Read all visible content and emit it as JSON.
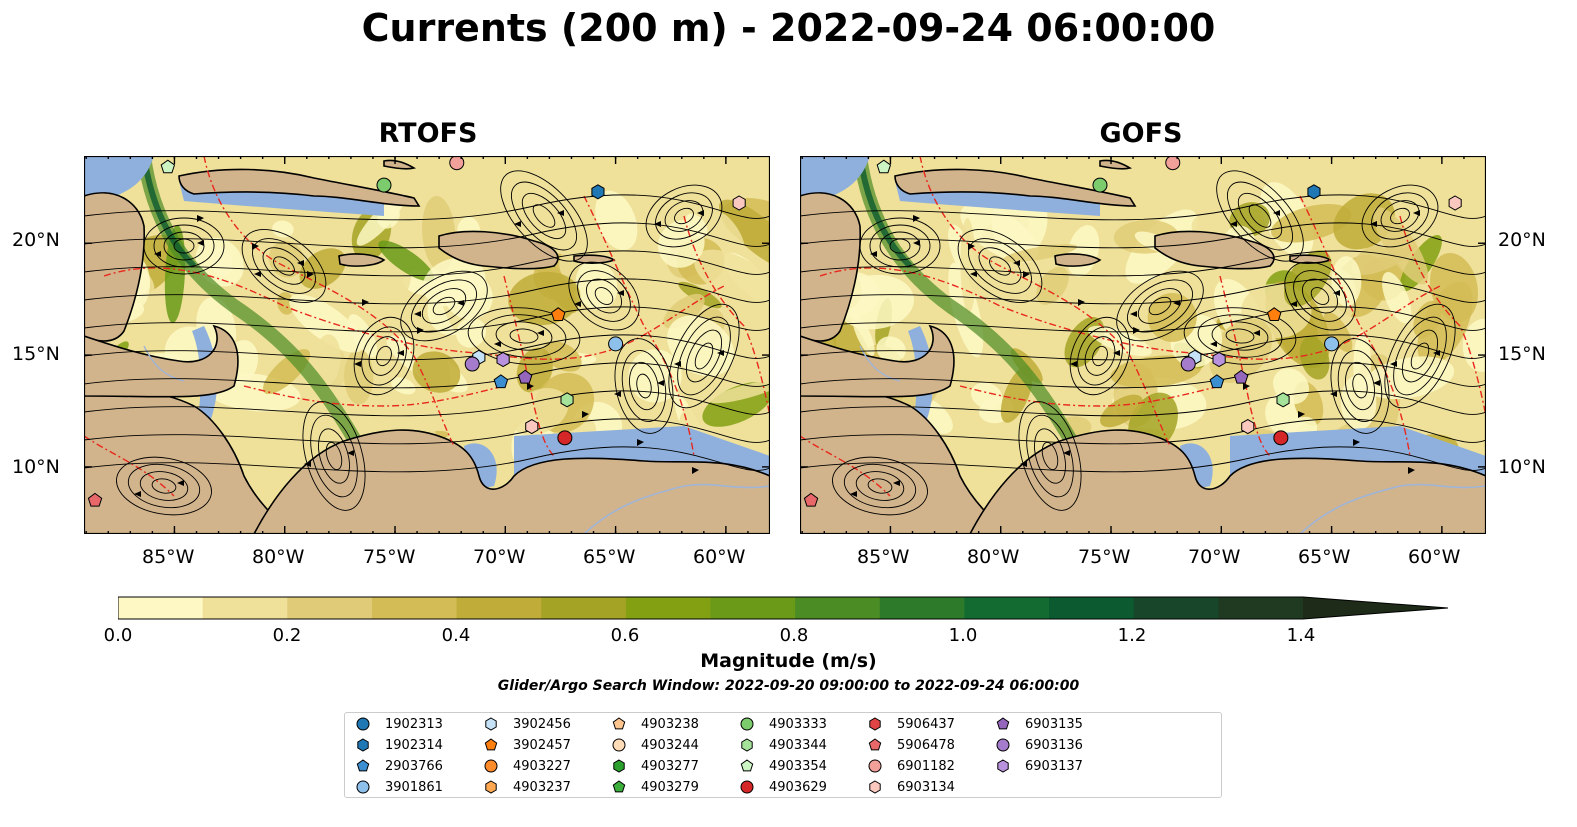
{
  "title": "Currents (200 m) - 2022-09-24 06:00:00",
  "panels": [
    {
      "title": "RTOFS"
    },
    {
      "title": "GOFS"
    }
  ],
  "lon_ticks": [
    "85°W",
    "80°W",
    "75°W",
    "70°W",
    "65°W",
    "60°W"
  ],
  "lat_ticks": [
    "20°N",
    "15°N",
    "10°N"
  ],
  "colorbar": {
    "label": "Magnitude (m/s)",
    "ticks": [
      "0.0",
      "0.2",
      "0.4",
      "0.6",
      "0.8",
      "1.0",
      "1.2",
      "1.4"
    ],
    "colors": [
      "#fdf8c4",
      "#efe09a",
      "#e0cc78",
      "#d3bc55",
      "#c0ac38",
      "#a4a326",
      "#82a012",
      "#6a9a18",
      "#4b8c24",
      "#2c7a2a",
      "#136b32",
      "#0c5a30",
      "#18462a",
      "#203a22",
      "#1d2b18"
    ]
  },
  "search_window": "Glider/Argo Search Window: 2022-09-20 09:00:00 to 2022-09-24 06:00:00",
  "legend": [
    {
      "id": "1902313",
      "shape": "circle",
      "color": "#1f77b4"
    },
    {
      "id": "1902314",
      "shape": "hexagon",
      "color": "#1f77b4"
    },
    {
      "id": "2903766",
      "shape": "pentagon",
      "color": "#3b8fd0"
    },
    {
      "id": "3901861",
      "shape": "circle",
      "color": "#8ec0ec"
    },
    {
      "id": "3902456",
      "shape": "hexagon",
      "color": "#c6e2f7"
    },
    {
      "id": "3902457",
      "shape": "pentagon",
      "color": "#ff7f0e"
    },
    {
      "id": "4903227",
      "shape": "circle",
      "color": "#ff8c2a"
    },
    {
      "id": "4903237",
      "shape": "hexagon",
      "color": "#ffa851"
    },
    {
      "id": "4903238",
      "shape": "pentagon",
      "color": "#ffc58f"
    },
    {
      "id": "4903244",
      "shape": "circle",
      "color": "#ffdcb8"
    },
    {
      "id": "4903277",
      "shape": "hexagon",
      "color": "#2ca02c"
    },
    {
      "id": "4903279",
      "shape": "pentagon",
      "color": "#3cae3c"
    },
    {
      "id": "4903333",
      "shape": "circle",
      "color": "#7ccb6c"
    },
    {
      "id": "4903344",
      "shape": "hexagon",
      "color": "#a6e39a"
    },
    {
      "id": "4903354",
      "shape": "pentagon",
      "color": "#cdf5c4"
    },
    {
      "id": "4903629",
      "shape": "circle",
      "color": "#d62728"
    },
    {
      "id": "5906437",
      "shape": "hexagon",
      "color": "#e04444"
    },
    {
      "id": "5906478",
      "shape": "pentagon",
      "color": "#e8686a"
    },
    {
      "id": "6901182",
      "shape": "circle",
      "color": "#f2a09a"
    },
    {
      "id": "6903134",
      "shape": "hexagon",
      "color": "#fbc8c0"
    },
    {
      "id": "6903135",
      "shape": "pentagon",
      "color": "#9467bd"
    },
    {
      "id": "6903136",
      "shape": "circle",
      "color": "#a57ccc"
    },
    {
      "id": "6903137",
      "shape": "hexagon",
      "color": "#b892dc"
    }
  ],
  "map_colors": {
    "land": "#d2b48c",
    "shallow": "#8fb0dc",
    "eez": "#e8281e",
    "river": "#a0b4d6"
  },
  "floats_on_map": [
    {
      "id": "4903354",
      "lon": -85.3,
      "lat": 23.4
    },
    {
      "id": "4903333",
      "lon": -75.5,
      "lat": 22.6
    },
    {
      "id": "6901182",
      "lon": -72.2,
      "lat": 23.6
    },
    {
      "id": "1902314",
      "lon": -65.8,
      "lat": 22.3
    },
    {
      "id": "6903134",
      "lon": -59.4,
      "lat": 21.8
    },
    {
      "id": "3902457",
      "lon": -67.6,
      "lat": 16.8
    },
    {
      "id": "3901861",
      "lon": -65.0,
      "lat": 15.5
    },
    {
      "id": "3902456",
      "lon": -71.2,
      "lat": 14.9
    },
    {
      "id": "6903137",
      "lon": -70.1,
      "lat": 14.8
    },
    {
      "id": "6903136",
      "lon": -71.5,
      "lat": 14.6
    },
    {
      "id": "2903766",
      "lon": -70.2,
      "lat": 13.8
    },
    {
      "id": "6903135",
      "lon": -69.1,
      "lat": 14.0
    },
    {
      "id": "4903344",
      "lon": -67.2,
      "lat": 13.0
    },
    {
      "id": "6903134",
      "lon": -68.8,
      "lat": 11.8
    },
    {
      "id": "4903629",
      "lon": -67.3,
      "lat": 11.3
    },
    {
      "id": "5906478",
      "lon": -88.6,
      "lat": 8.5
    }
  ]
}
